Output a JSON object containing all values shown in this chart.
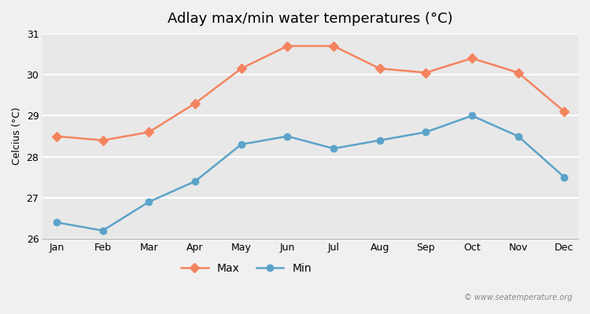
{
  "title": "Adlay max/min water temperatures (°C)",
  "ylabel": "Celcius (°C)",
  "months": [
    "Jan",
    "Feb",
    "Mar",
    "Apr",
    "May",
    "Jun",
    "Jul",
    "Aug",
    "Sep",
    "Oct",
    "Nov",
    "Dec"
  ],
  "max_temps": [
    28.5,
    28.4,
    28.6,
    29.3,
    30.15,
    30.7,
    30.7,
    30.15,
    30.05,
    30.4,
    30.05,
    29.1
  ],
  "min_temps": [
    26.4,
    26.2,
    26.9,
    27.4,
    28.3,
    28.5,
    28.2,
    28.4,
    28.6,
    29.0,
    28.5,
    27.5
  ],
  "max_color": "#f4845f",
  "min_color": "#5ba3c9",
  "bg_color": "#f0f0f0",
  "plot_bg_color": "#e8e8e8",
  "grid_color": "#ffffff",
  "ylim_min": 26,
  "ylim_max": 31,
  "yticks": [
    26,
    27,
    28,
    29,
    30,
    31
  ],
  "watermark": "© www.seatemperature.org"
}
